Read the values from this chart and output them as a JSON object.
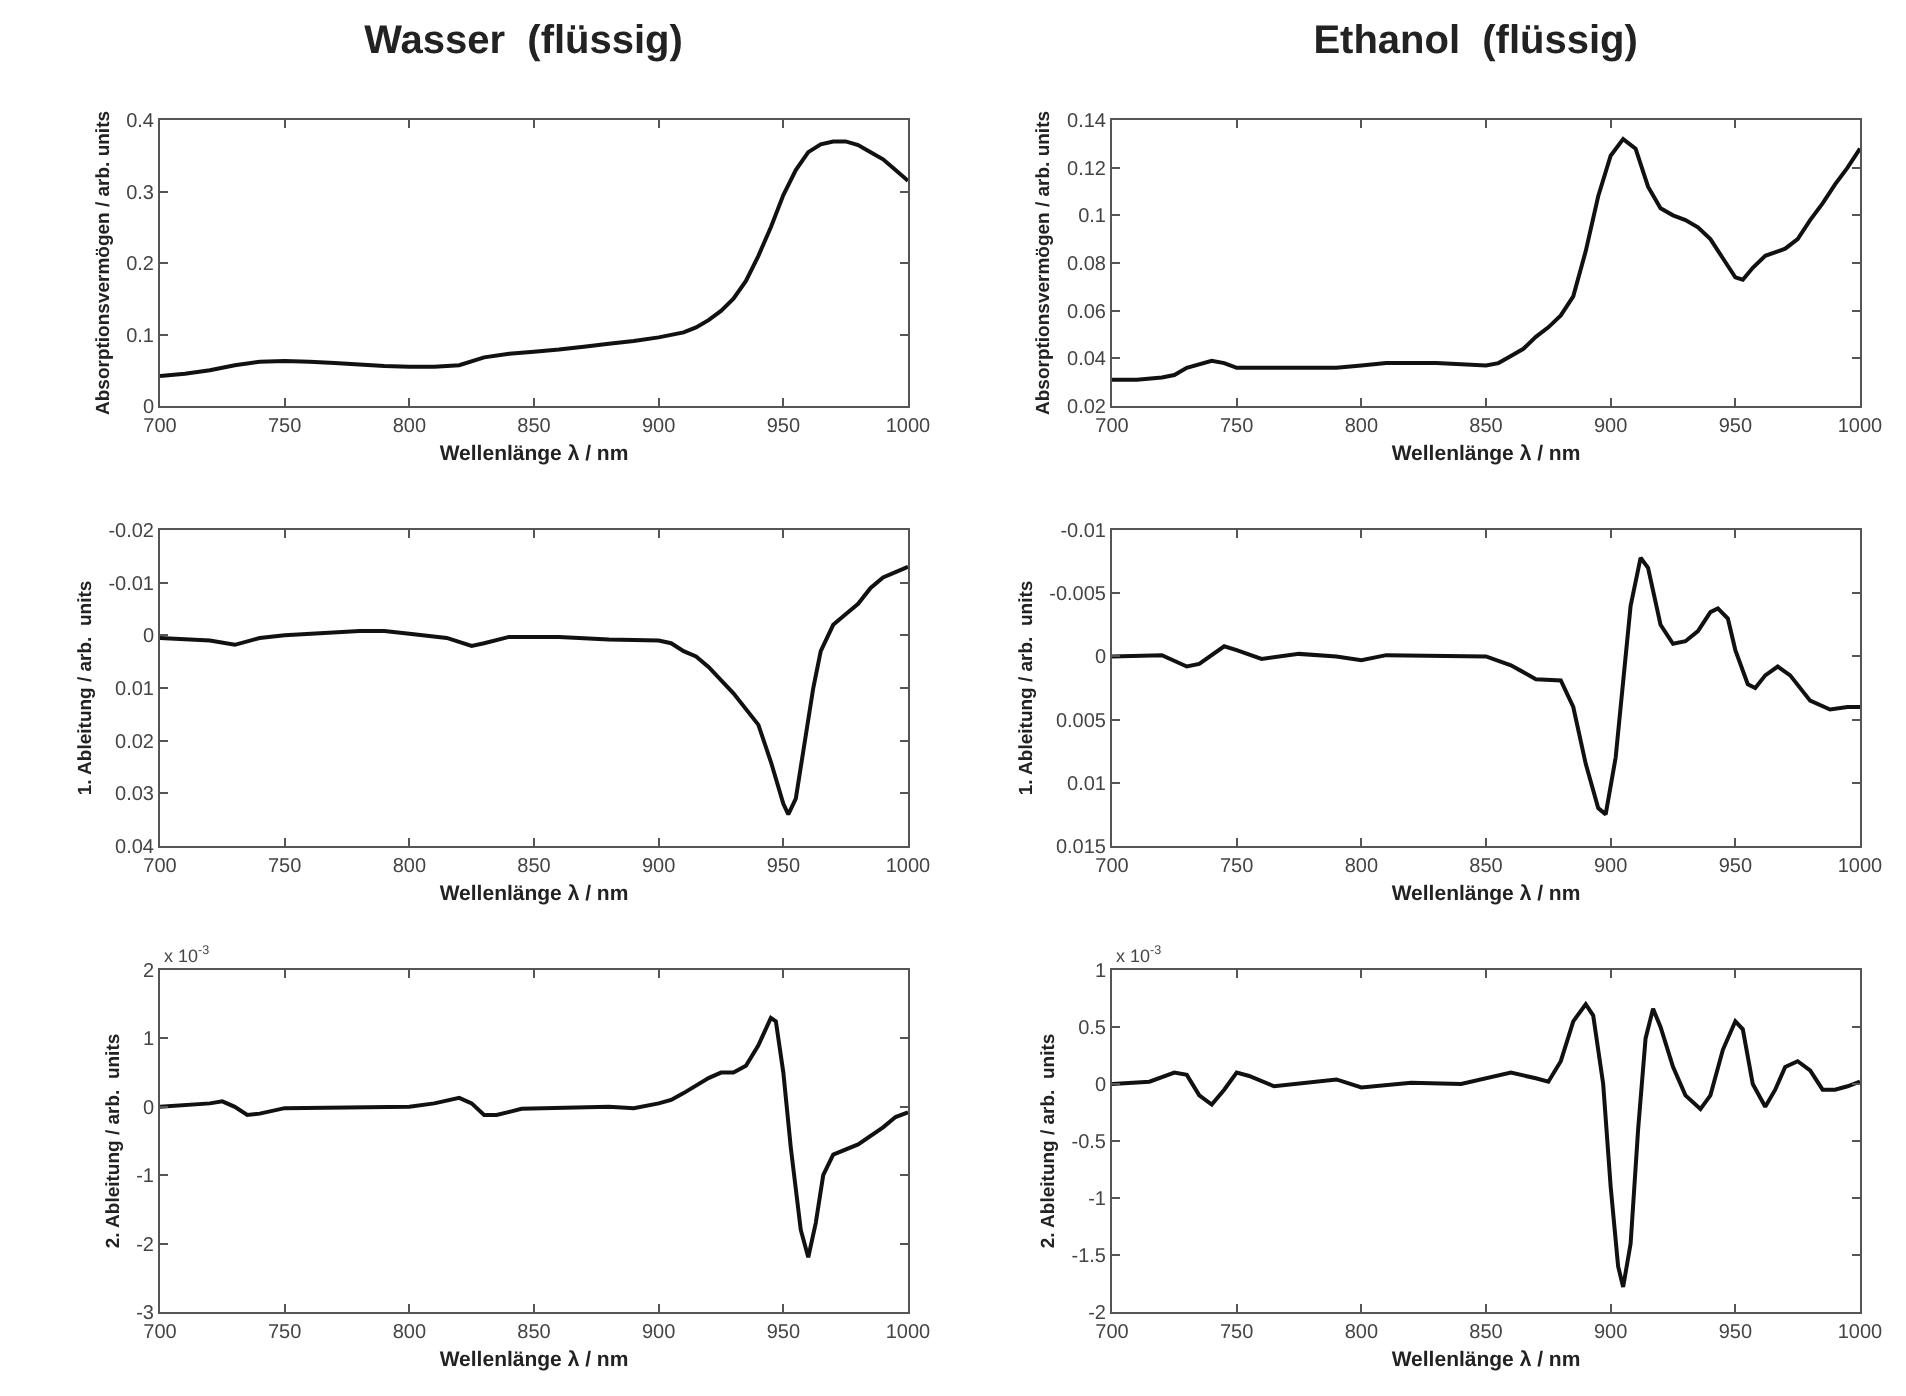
{
  "chart_data": [
    {
      "type": "line",
      "title": "Wasser  (flüssig)",
      "xlabel": "Wellenlänge λ / nm",
      "ylabel": "Absorptionsvermögen / arb. units",
      "color": "#111111",
      "xlim": [
        700,
        1000
      ],
      "xticks": [
        700,
        750,
        800,
        850,
        900,
        950,
        1000
      ],
      "ylim": [
        0,
        0.4
      ],
      "yticks": [
        0,
        0.1,
        0.2,
        0.3,
        0.4
      ],
      "x": [
        700,
        710,
        720,
        730,
        740,
        750,
        760,
        770,
        780,
        790,
        800,
        810,
        820,
        830,
        840,
        850,
        860,
        870,
        880,
        890,
        900,
        910,
        915,
        920,
        925,
        930,
        935,
        940,
        945,
        950,
        955,
        960,
        965,
        970,
        975,
        980,
        985,
        990,
        995,
        1000
      ],
      "values": [
        0.042,
        0.045,
        0.05,
        0.057,
        0.062,
        0.063,
        0.062,
        0.06,
        0.058,
        0.056,
        0.055,
        0.055,
        0.057,
        0.068,
        0.073,
        0.076,
        0.079,
        0.083,
        0.087,
        0.091,
        0.096,
        0.103,
        0.11,
        0.12,
        0.133,
        0.15,
        0.175,
        0.21,
        0.25,
        0.295,
        0.33,
        0.355,
        0.366,
        0.37,
        0.37,
        0.365,
        0.355,
        0.345,
        0.33,
        0.315
      ]
    },
    {
      "type": "line",
      "title": "Ethanol  (flüssig)",
      "xlabel": "Wellenlänge λ / nm",
      "ylabel": "Absorptionsvermögen / arb. units",
      "color": "#111111",
      "xlim": [
        700,
        1000
      ],
      "xticks": [
        700,
        750,
        800,
        850,
        900,
        950,
        1000
      ],
      "ylim": [
        0.02,
        0.14
      ],
      "yticks": [
        0.02,
        0.04,
        0.06,
        0.08,
        0.1,
        0.12,
        0.14
      ],
      "x": [
        700,
        710,
        720,
        725,
        730,
        740,
        745,
        750,
        760,
        780,
        790,
        800,
        810,
        830,
        850,
        855,
        860,
        865,
        870,
        875,
        880,
        885,
        890,
        895,
        900,
        905,
        910,
        915,
        920,
        925,
        930,
        935,
        940,
        945,
        950,
        953,
        957,
        962,
        970,
        975,
        980,
        985,
        990,
        995,
        1000
      ],
      "values": [
        0.031,
        0.031,
        0.032,
        0.033,
        0.036,
        0.039,
        0.038,
        0.036,
        0.036,
        0.036,
        0.036,
        0.037,
        0.038,
        0.038,
        0.037,
        0.038,
        0.041,
        0.044,
        0.049,
        0.053,
        0.058,
        0.066,
        0.085,
        0.108,
        0.125,
        0.132,
        0.128,
        0.112,
        0.103,
        0.1,
        0.098,
        0.095,
        0.09,
        0.082,
        0.074,
        0.073,
        0.078,
        0.083,
        0.086,
        0.09,
        0.098,
        0.105,
        0.113,
        0.12,
        0.128
      ]
    },
    {
      "type": "line",
      "xlabel": "Wellenlänge λ / nm",
      "ylabel": "1. Ableitung / arb.  units",
      "color": "#111111",
      "xlim": [
        700,
        1000
      ],
      "xticks": [
        700,
        750,
        800,
        850,
        900,
        950,
        1000
      ],
      "ylim": [
        0.04,
        -0.02
      ],
      "yticks": [
        -0.02,
        -0.01,
        0,
        0.01,
        0.02,
        0.03,
        0.04
      ],
      "x": [
        700,
        720,
        730,
        740,
        750,
        780,
        790,
        800,
        815,
        825,
        830,
        840,
        860,
        880,
        900,
        905,
        910,
        915,
        920,
        930,
        940,
        945,
        950,
        952,
        955,
        958,
        962,
        965,
        970,
        975,
        980,
        985,
        990,
        995,
        1000
      ],
      "values": [
        0.0005,
        0.001,
        0.0018,
        0.0005,
        0,
        -0.0008,
        -0.0008,
        -0.0003,
        0.0005,
        0.002,
        0.0015,
        0.0003,
        0.0003,
        0.0008,
        0.001,
        0.0015,
        0.003,
        0.004,
        0.006,
        0.011,
        0.017,
        0.024,
        0.032,
        0.034,
        0.031,
        0.022,
        0.01,
        0.003,
        -0.002,
        -0.004,
        -0.006,
        -0.009,
        -0.011,
        -0.012,
        -0.013
      ]
    },
    {
      "type": "line",
      "xlabel": "Wellenlänge λ / nm",
      "ylabel": "1. Ableitung / arb.  units",
      "color": "#111111",
      "xlim": [
        700,
        1000
      ],
      "xticks": [
        700,
        750,
        800,
        850,
        900,
        950,
        1000
      ],
      "ylim": [
        0.015,
        -0.01
      ],
      "yticks": [
        -0.01,
        -0.005,
        0,
        0.005,
        0.01,
        0.015
      ],
      "x": [
        700,
        720,
        730,
        735,
        745,
        750,
        760,
        775,
        790,
        800,
        810,
        850,
        860,
        870,
        880,
        885,
        890,
        895,
        898,
        902,
        905,
        908,
        912,
        915,
        920,
        925,
        930,
        935,
        940,
        943,
        947,
        950,
        955,
        958,
        962,
        967,
        972,
        980,
        988,
        995,
        1000
      ],
      "values": [
        0,
        -0.0001,
        0.0008,
        0.0006,
        -0.0008,
        -0.0005,
        0.0002,
        -0.0002,
        0,
        0.0003,
        -0.0001,
        0,
        0.0007,
        0.0018,
        0.0019,
        0.004,
        0.0085,
        0.012,
        0.0125,
        0.008,
        0.002,
        -0.004,
        -0.0078,
        -0.007,
        -0.0025,
        -0.001,
        -0.0012,
        -0.002,
        -0.0035,
        -0.0038,
        -0.003,
        -0.0005,
        0.0022,
        0.0025,
        0.0015,
        0.0008,
        0.0015,
        0.0035,
        0.0042,
        0.004,
        0.004
      ]
    },
    {
      "type": "line",
      "xlabel": "Wellenlänge λ / nm",
      "ylabel": "2. Ableitung / arb.  units",
      "annotations": [
        "x 10$^{-3}$"
      ],
      "color": "#111111",
      "xlim": [
        700,
        1000
      ],
      "xticks": [
        700,
        750,
        800,
        850,
        900,
        950,
        1000
      ],
      "ylim": [
        -3,
        2
      ],
      "yticks": [
        -3,
        -2,
        -1,
        0,
        1,
        2
      ],
      "x": [
        700,
        720,
        725,
        730,
        735,
        740,
        750,
        800,
        810,
        820,
        825,
        830,
        835,
        845,
        880,
        890,
        900,
        905,
        910,
        920,
        925,
        930,
        935,
        940,
        945,
        947,
        950,
        953,
        957,
        960,
        963,
        966,
        970,
        980,
        990,
        995,
        1000
      ],
      "values": [
        0,
        0.05,
        0.08,
        0,
        -0.12,
        -0.1,
        -0.02,
        0,
        0.05,
        0.13,
        0.05,
        -0.12,
        -0.12,
        -0.03,
        0,
        -0.02,
        0.05,
        0.1,
        0.2,
        0.42,
        0.5,
        0.5,
        0.6,
        0.9,
        1.3,
        1.25,
        0.5,
        -0.6,
        -1.8,
        -2.2,
        -1.7,
        -1,
        -0.7,
        -0.55,
        -0.3,
        -0.15,
        -0.08
      ]
    },
    {
      "type": "line",
      "xlabel": "Wellenlänge λ / nm",
      "ylabel": "2. Ableitung / arb.  units",
      "annotations": [
        "x 10$^{-3}$"
      ],
      "color": "#111111",
      "xlim": [
        700,
        1000
      ],
      "xticks": [
        700,
        750,
        800,
        850,
        900,
        950,
        1000
      ],
      "ylim": [
        -2,
        1
      ],
      "yticks": [
        -2,
        -1.5,
        -1,
        -0.5,
        0,
        0.5,
        1
      ],
      "x": [
        700,
        715,
        725,
        730,
        735,
        740,
        745,
        750,
        755,
        765,
        790,
        800,
        820,
        840,
        860,
        870,
        875,
        880,
        885,
        890,
        893,
        897,
        900,
        903,
        905,
        908,
        911,
        914,
        917,
        920,
        925,
        930,
        936,
        940,
        945,
        950,
        953,
        957,
        962,
        966,
        970,
        975,
        980,
        985,
        990,
        995,
        1000
      ],
      "values": [
        0,
        0.02,
        0.1,
        0.08,
        -0.1,
        -0.18,
        -0.05,
        0.1,
        0.07,
        -0.02,
        0.04,
        -0.03,
        0.01,
        0,
        0.1,
        0.05,
        0.02,
        0.2,
        0.55,
        0.7,
        0.6,
        0,
        -0.9,
        -1.6,
        -1.78,
        -1.4,
        -0.4,
        0.4,
        0.66,
        0.5,
        0.15,
        -0.1,
        -0.22,
        -0.1,
        0.3,
        0.55,
        0.48,
        0,
        -0.2,
        -0.05,
        0.15,
        0.2,
        0.12,
        -0.05,
        -0.05,
        -0.02,
        0.02
      ]
    }
  ]
}
